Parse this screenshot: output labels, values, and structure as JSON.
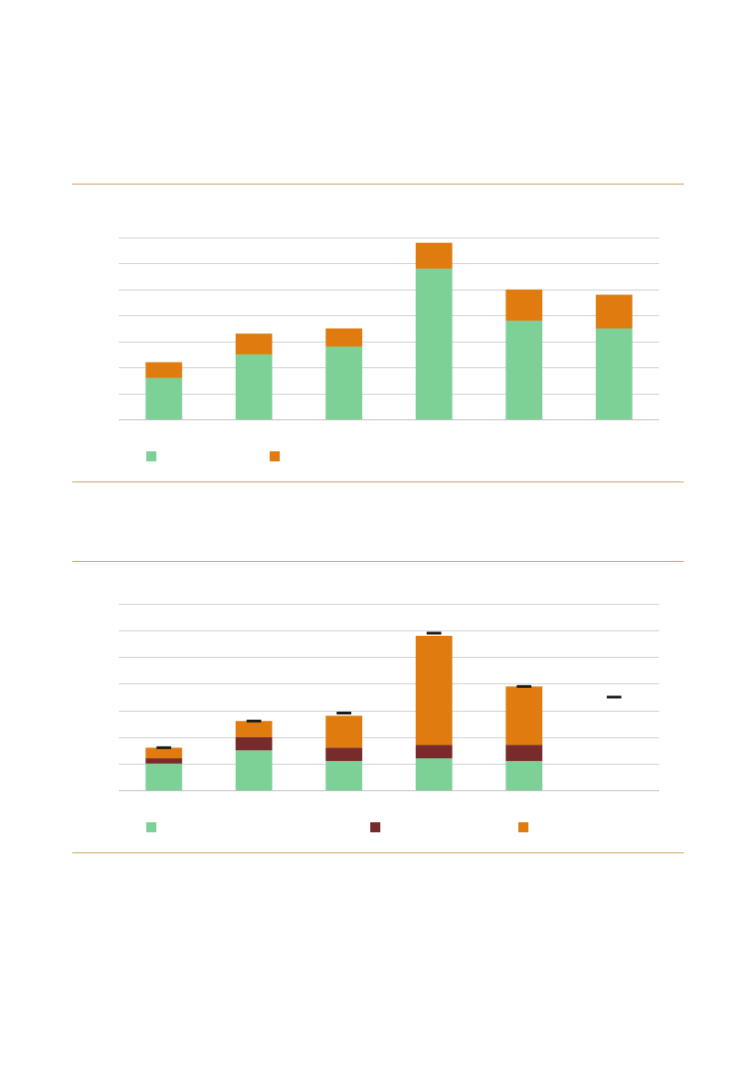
{
  "chart_data": [
    {
      "type": "bar",
      "stacked": true,
      "grid": true,
      "categories": [
        null,
        null,
        null,
        null,
        null,
        null
      ],
      "ylim": [
        0,
        7
      ],
      "yticks": [
        0,
        1,
        2,
        3,
        4,
        5,
        6,
        7
      ],
      "series": [
        {
          "color": "#7dd197",
          "values": [
            1.6,
            2.5,
            2.8,
            5.8,
            3.8,
            3.5
          ]
        },
        {
          "color": "#e07b10",
          "values": [
            0.6,
            0.8,
            0.7,
            1.0,
            1.2,
            1.3
          ]
        }
      ]
    },
    {
      "type": "bar",
      "stacked": true,
      "grid": true,
      "categories": [
        null,
        null,
        null,
        null,
        null,
        null
      ],
      "ylim": [
        0,
        7
      ],
      "yticks": [
        0,
        1,
        2,
        3,
        4,
        5,
        6,
        7
      ],
      "series": [
        {
          "color": "#7dd197",
          "values": [
            1.0,
            1.5,
            1.1,
            1.2,
            1.1,
            null
          ]
        },
        {
          "color": "#772b2b",
          "values": [
            0.2,
            0.5,
            0.5,
            0.5,
            0.6,
            null
          ]
        },
        {
          "color": "#e07b10",
          "values": [
            0.4,
            0.6,
            1.2,
            4.1,
            2.2,
            null
          ]
        },
        {
          "type": "marker",
          "color": "#1a1a1a",
          "values": [
            1.6,
            2.6,
            2.9,
            5.9,
            3.9,
            3.5
          ]
        }
      ]
    }
  ]
}
